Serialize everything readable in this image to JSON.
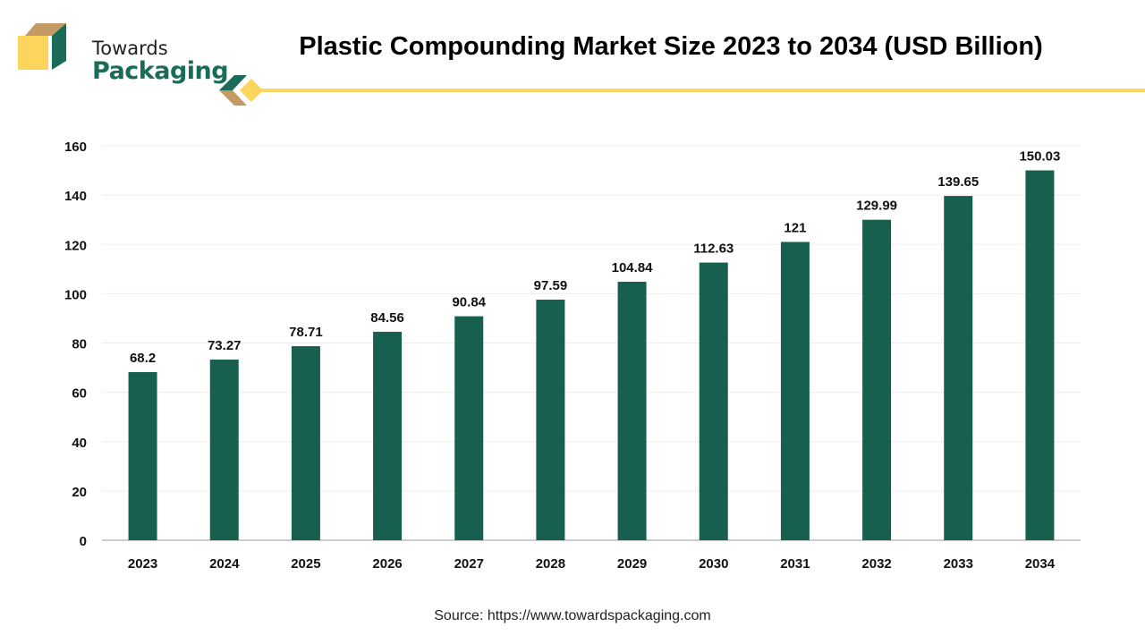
{
  "brand": {
    "line1": "Towards",
    "line2": "Packaging",
    "colors": {
      "green": "#1a6b58",
      "tan": "#c49a64",
      "yellow": "#fcd55c"
    }
  },
  "title": "Plastic Compounding Market Size 2023 to 2034 (USD Billion)",
  "source": "Source: https://www.towardspackaging.com",
  "chart_data": {
    "type": "bar",
    "title": "Plastic Compounding Market Size 2023 to 2034 (USD Billion)",
    "categories": [
      "2023",
      "2024",
      "2025",
      "2026",
      "2027",
      "2028",
      "2029",
      "2030",
      "2031",
      "2032",
      "2033",
      "2034"
    ],
    "values": [
      68.2,
      73.27,
      78.71,
      84.56,
      90.84,
      97.59,
      104.84,
      112.63,
      121,
      129.99,
      139.65,
      150.03
    ],
    "labels": [
      "68.2",
      "73.27",
      "78.71",
      "84.56",
      "90.84",
      "97.59",
      "104.84",
      "112.63",
      "121",
      "129.99",
      "139.65",
      "150.03"
    ],
    "ylim": [
      0,
      160
    ],
    "yticks": [
      0,
      20,
      40,
      60,
      80,
      100,
      120,
      140,
      160
    ],
    "grid": true,
    "bar_color": "#17604f",
    "xlabel": "",
    "ylabel": ""
  }
}
